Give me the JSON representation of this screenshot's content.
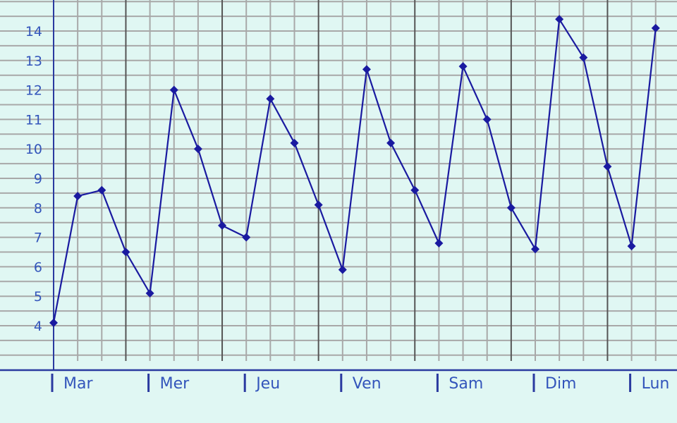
{
  "chart_data": {
    "type": "line",
    "x_day_labels": [
      "Mar",
      "Mer",
      "Jeu",
      "Ven",
      "Sam",
      "Dim",
      "Lun"
    ],
    "y_tick_labels": [
      "4",
      "5",
      "6",
      "7",
      "8",
      "9",
      "10",
      "11",
      "12",
      "13",
      "14"
    ],
    "ylim": [
      3,
      15.5
    ],
    "grid": true,
    "series": [
      {
        "values": [
          4.1,
          8.4,
          8.6,
          6.5,
          5.1,
          12.0,
          10.0,
          7.4,
          7.0,
          11.7,
          10.2,
          8.1,
          5.9,
          12.7,
          10.2,
          8.6,
          6.8,
          12.8,
          11.0,
          8.0,
          6.6,
          14.4,
          13.1,
          9.4,
          6.7,
          14.1
        ]
      }
    ],
    "colors": {
      "background": "#e0f7f3",
      "grid_minor": "#a8a8a8",
      "grid_major": "#555555",
      "line": "#1a1aa0",
      "marker": "#1a1aa0",
      "axis": "#2a3aa0",
      "tick_text": "#3355bb"
    }
  }
}
